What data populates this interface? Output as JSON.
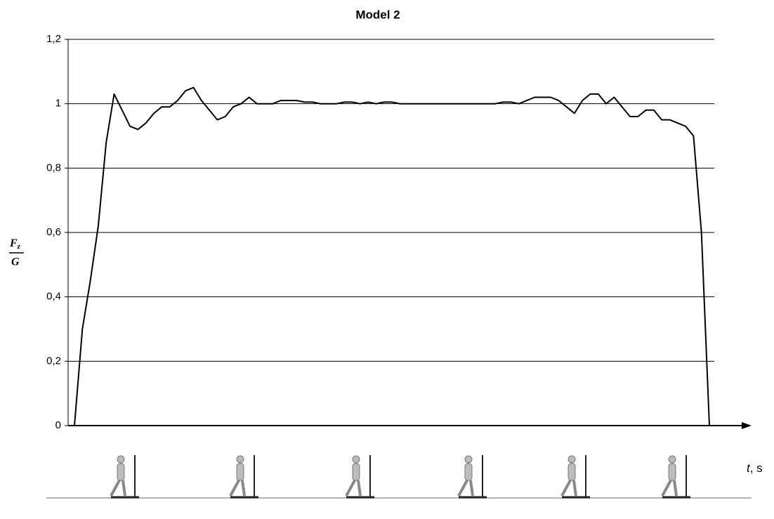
{
  "chart_data": {
    "type": "line",
    "title": "Model 2",
    "y_label": {
      "numerator": "F",
      "subscript": "z",
      "denominator": "G"
    },
    "x_label": {
      "variable": "t",
      "unit": ", s"
    },
    "ylim": [
      0,
      1.2
    ],
    "yticks": [
      0,
      {
        "value": 0.2,
        "label": "0,2"
      },
      {
        "value": 0.4,
        "label": "0,4"
      },
      {
        "value": 0.6,
        "label": "0,6"
      },
      {
        "value": 0.8,
        "label": "0,8"
      },
      1,
      {
        "value": 1.2,
        "label": "1,2"
      }
    ],
    "grid": true,
    "color": "#000000",
    "values": [
      0,
      0.3,
      0.45,
      0.62,
      0.88,
      1.03,
      0.98,
      0.93,
      0.92,
      0.94,
      0.97,
      0.99,
      0.99,
      1.01,
      1.04,
      1.05,
      1.01,
      0.98,
      0.95,
      0.96,
      0.99,
      1.0,
      1.02,
      1.0,
      1.0,
      1.0,
      1.01,
      1.01,
      1.01,
      1.005,
      1.005,
      1.0,
      1.0,
      1.0,
      1.005,
      1.005,
      1.0,
      1.005,
      1.0,
      1.005,
      1.005,
      1.0,
      1.0,
      1.0,
      1.0,
      1.0,
      1.0,
      1.0,
      1.0,
      1.0,
      1.0,
      1.0,
      1.0,
      1.0,
      1.005,
      1.005,
      1.0,
      1.01,
      1.02,
      1.02,
      1.02,
      1.01,
      0.99,
      0.97,
      1.01,
      1.03,
      1.03,
      1.0,
      1.02,
      0.99,
      0.96,
      0.96,
      0.98,
      0.98,
      0.95,
      0.95,
      0.94,
      0.93,
      0.9,
      0.6,
      0
    ]
  }
}
